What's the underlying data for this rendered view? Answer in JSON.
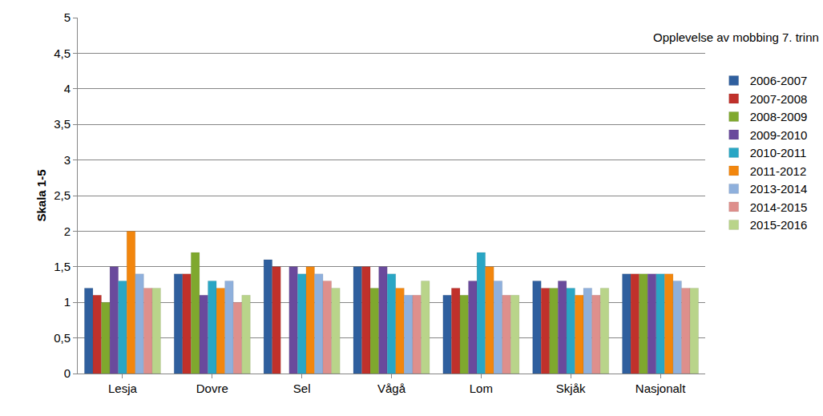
{
  "chart_data": {
    "type": "bar",
    "title": "Opplevelse av mobbing 7. trinn",
    "y_label": "Skala 1-5",
    "categories": [
      "Lesja",
      "Dovre",
      "Sel",
      "Vågå",
      "Lom",
      "Skjåk",
      "Nasjonalt"
    ],
    "series": [
      {
        "name": "2006-2007",
        "color": "#2f5f9e",
        "values": [
          1.2,
          1.4,
          1.6,
          1.5,
          1.1,
          1.3,
          1.4
        ]
      },
      {
        "name": "2007-2008",
        "color": "#c0312b",
        "values": [
          1.1,
          1.4,
          1.5,
          1.5,
          1.2,
          1.2,
          1.4
        ]
      },
      {
        "name": "2008-2009",
        "color": "#7fa82e",
        "values": [
          1.0,
          1.7,
          null,
          1.2,
          1.1,
          1.2,
          1.4
        ]
      },
      {
        "name": "2009-2010",
        "color": "#6a4a9c",
        "values": [
          1.5,
          1.1,
          1.5,
          1.5,
          1.3,
          1.3,
          1.4
        ]
      },
      {
        "name": "2010-2011",
        "color": "#2aa6c4",
        "values": [
          1.3,
          1.3,
          1.4,
          1.4,
          1.7,
          1.2,
          1.4
        ]
      },
      {
        "name": "2011-2012",
        "color": "#f2860d",
        "values": [
          2.0,
          1.2,
          1.5,
          1.2,
          1.5,
          1.1,
          1.4
        ]
      },
      {
        "name": "2013-2014",
        "color": "#8fb0dc",
        "values": [
          1.4,
          1.3,
          1.4,
          1.1,
          1.3,
          1.2,
          1.3
        ]
      },
      {
        "name": "2014-2015",
        "color": "#de8f8c",
        "values": [
          1.2,
          1.0,
          1.3,
          1.1,
          1.1,
          1.1,
          1.2
        ]
      },
      {
        "name": "2015-2016",
        "color": "#b9d48a",
        "values": [
          1.2,
          1.1,
          1.2,
          1.3,
          1.1,
          1.2,
          1.2
        ]
      }
    ],
    "ylim": [
      0,
      5
    ],
    "yticks": [
      0,
      {
        "value": 0.5,
        "label": "0,5"
      },
      1,
      {
        "value": 1.5,
        "label": "1,5"
      },
      2,
      {
        "value": 2.5,
        "label": "2,5"
      },
      3,
      {
        "value": 3.5,
        "label": "3,5"
      },
      4,
      {
        "value": 4.5,
        "label": "4,5"
      },
      5
    ],
    "grid": true,
    "legend": "right"
  }
}
